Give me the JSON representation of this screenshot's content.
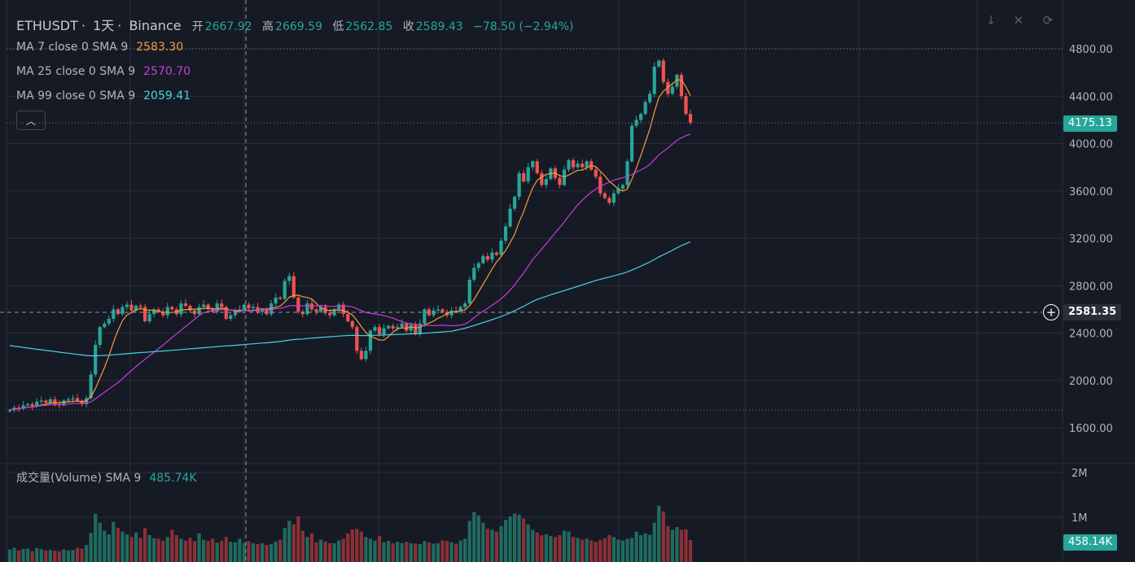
{
  "header": {
    "symbol": "ETHUSDT",
    "interval": "1天",
    "exchange": "Binance",
    "open_label": "开",
    "open": "2667.92",
    "high_label": "高",
    "high": "2669.59",
    "low_label": "低",
    "low": "2562.85",
    "close_label": "收",
    "close": "2589.43",
    "change": "−78.50 (−2.94%)"
  },
  "indicators": [
    {
      "label": "MA 7 close 0 SMA 9",
      "value": "2583.30",
      "color": "#f59d3a"
    },
    {
      "label": "MA 25 close 0 SMA 9",
      "value": "2570.70",
      "color": "#c83cdc"
    },
    {
      "label": "MA 99 close 0 SMA 9",
      "value": "2059.41",
      "color": "#4dd0e1"
    }
  ],
  "volume_indicator": {
    "label": "成交量(Volume) SMA 9",
    "value": "485.74K",
    "color": "#26a69a"
  },
  "price_axis": {
    "ticks": [
      "4800.00",
      "4400.00",
      "4000.00",
      "3600.00",
      "3200.00",
      "2800.00",
      "2400.00",
      "2000.00",
      "1600.00"
    ]
  },
  "volume_axis": {
    "ticks": [
      "2M",
      "1M"
    ]
  },
  "last_price_tag": "4175.13",
  "crosshair_price_tag": "2581.35",
  "volume_tag": "458.14K",
  "colors": {
    "up": "#26a69a",
    "down": "#ef5350",
    "grid": "#2a2e39",
    "background": "#161a25"
  },
  "chart_data": {
    "type": "candlestick",
    "y_range": [
      1500,
      4900
    ],
    "volume_range": [
      0,
      2200000
    ],
    "closes": [
      1750,
      1770,
      1760,
      1790,
      1800,
      1780,
      1820,
      1830,
      1810,
      1840,
      1800,
      1790,
      1830,
      1840,
      1850,
      1830,
      1800,
      1850,
      2050,
      2300,
      2450,
      2480,
      2520,
      2600,
      2560,
      2620,
      2640,
      2590,
      2630,
      2620,
      2500,
      2560,
      2600,
      2580,
      2550,
      2620,
      2600,
      2560,
      2650,
      2630,
      2590,
      2560,
      2620,
      2640,
      2600,
      2580,
      2650,
      2620,
      2520,
      2550,
      2580,
      2600,
      2640,
      2610,
      2620,
      2580,
      2600,
      2560,
      2650,
      2700,
      2690,
      2840,
      2880,
      2700,
      2580,
      2560,
      2650,
      2600,
      2580,
      2620,
      2570,
      2550,
      2600,
      2640,
      2560,
      2500,
      2450,
      2250,
      2180,
      2250,
      2420,
      2450,
      2390,
      2440,
      2460,
      2440,
      2450,
      2480,
      2420,
      2470,
      2390,
      2480,
      2600,
      2550,
      2590,
      2600,
      2580,
      2550,
      2590,
      2580,
      2620,
      2650,
      2850,
      2950,
      2990,
      3050,
      3020,
      3080,
      3060,
      3180,
      3300,
      3450,
      3550,
      3750,
      3680,
      3800,
      3850,
      3750,
      3650,
      3700,
      3790,
      3710,
      3650,
      3780,
      3860,
      3800,
      3830,
      3800,
      3850,
      3780,
      3720,
      3580,
      3540,
      3500,
      3580,
      3620,
      3650,
      3850,
      4150,
      4200,
      4250,
      4350,
      4420,
      4650,
      4700,
      4520,
      4420,
      4480,
      4580,
      4400,
      4250,
      4175
    ],
    "volumes": [
      280000,
      320000,
      260000,
      290000,
      300000,
      240000,
      310000,
      290000,
      260000,
      270000,
      250000,
      240000,
      280000,
      260000,
      270000,
      320000,
      300000,
      380000,
      650000,
      1080000,
      880000,
      700000,
      620000,
      900000,
      760000,
      680000,
      620000,
      560000,
      660000,
      540000,
      760000,
      600000,
      530000,
      520000,
      480000,
      560000,
      720000,
      600000,
      520000,
      480000,
      540000,
      470000,
      640000,
      500000,
      470000,
      520000,
      430000,
      470000,
      560000,
      450000,
      440000,
      520000,
      420000,
      470000,
      420000,
      400000,
      420000,
      380000,
      400000,
      460000,
      500000,
      760000,
      920000,
      840000,
      1020000,
      700000,
      560000,
      640000,
      440000,
      500000,
      460000,
      420000,
      420000,
      480000,
      520000,
      640000,
      730000,
      740000,
      680000,
      560000,
      520000,
      480000,
      580000,
      440000,
      470000,
      420000,
      450000,
      420000,
      450000,
      420000,
      410000,
      400000,
      470000,
      440000,
      410000,
      420000,
      480000,
      470000,
      440000,
      410000,
      480000,
      520000,
      920000,
      1120000,
      1040000,
      880000,
      740000,
      720000,
      680000,
      800000,
      940000,
      1020000,
      1080000,
      1060000,
      970000,
      840000,
      720000,
      660000,
      600000,
      620000,
      580000,
      560000,
      600000,
      700000,
      680000,
      560000,
      540000,
      500000,
      520000,
      480000,
      450000,
      490000,
      530000,
      600000,
      560000,
      500000,
      480000,
      520000,
      540000,
      680000,
      600000,
      640000,
      610000,
      880000,
      1260000,
      1130000,
      800000,
      720000,
      780000,
      720000,
      730000,
      490000
    ]
  }
}
